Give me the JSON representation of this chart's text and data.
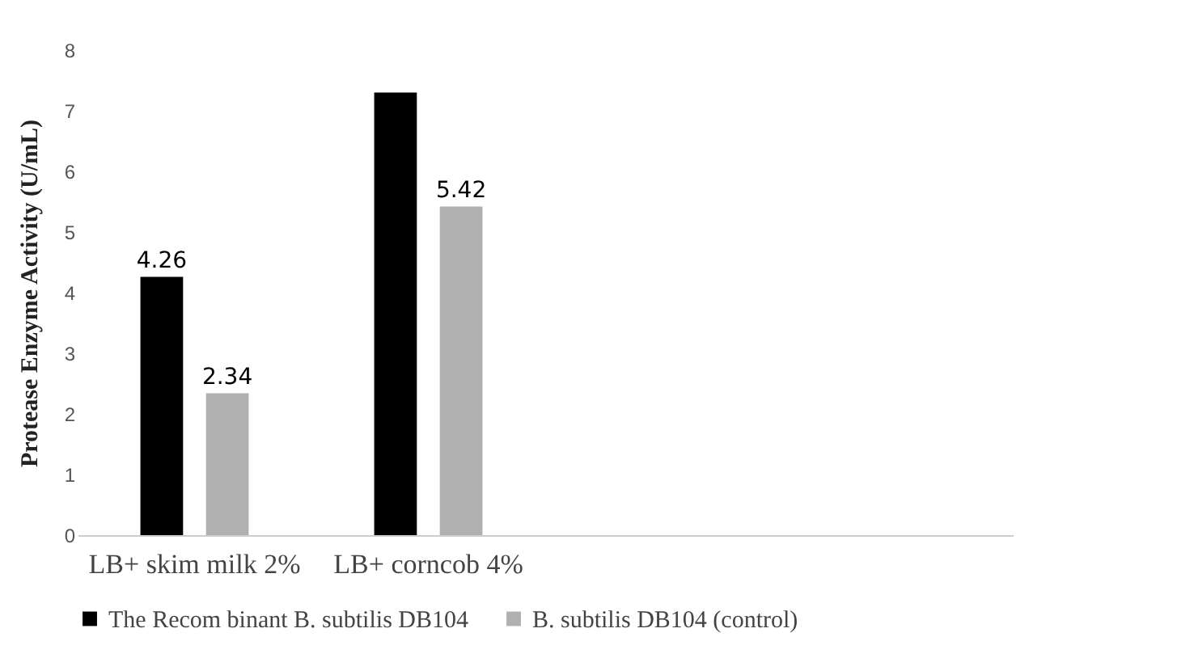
{
  "chart_data": {
    "type": "bar",
    "ylabel": "Protease Enzyme Activity (U/mL)",
    "categories": [
      "LB+ skim milk 2%",
      "LB+ corncob 4%",
      null,
      null
    ],
    "series": [
      {
        "name": "The Recom binant B. subtilis DB104",
        "color": "#000000",
        "values": [
          4.26,
          7.3,
          null,
          null
        ],
        "value_labels": [
          "4.26",
          null,
          null,
          null
        ]
      },
      {
        "name": "B. subtilis DB104 (control)",
        "color": "#b0b0b0",
        "values": [
          2.34,
          5.42,
          null,
          null
        ],
        "value_labels": [
          "2.34",
          "5.42",
          null,
          null
        ]
      }
    ],
    "ylim": [
      0,
      8
    ],
    "yticks": [
      0,
      1,
      2,
      3,
      4,
      5,
      6,
      7,
      8
    ],
    "grid": false,
    "legend": "bottom"
  }
}
